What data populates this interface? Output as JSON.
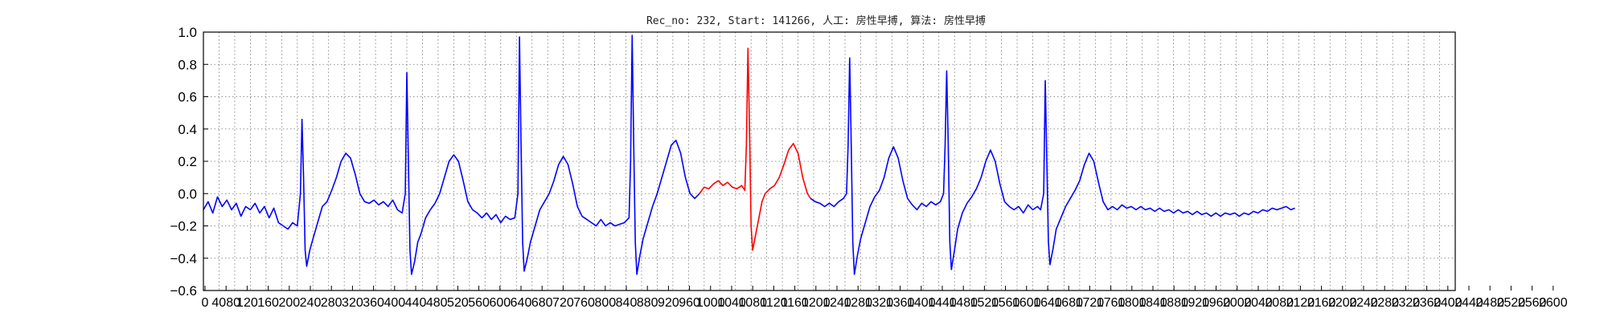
{
  "chart_data": {
    "type": "line",
    "title": "Rec_no: 232, Start: 141266, 人工: 房性早搏, 算法: 房性早搏",
    "xlabel": "",
    "ylabel": "",
    "xlim": [
      0,
      1600
    ],
    "ylim": [
      -0.6,
      1.0
    ],
    "yticks": [
      -0.6,
      -0.4,
      -0.2,
      0.0,
      0.2,
      0.4,
      0.6,
      0.8,
      1.0
    ],
    "ytick_labels": [
      "−0.6",
      "−0.4",
      "−0.2",
      "0.0",
      "0.2",
      "0.4",
      "0.6",
      "0.8",
      "1.0"
    ],
    "xtick_step": 20,
    "xtick_labels": [
      "0",
      "4080",
      "120",
      "160",
      "200",
      "240",
      "280",
      "320",
      "360",
      "400",
      "440",
      "480",
      "520",
      "560",
      "600",
      "640",
      "680",
      "720",
      "760",
      "800",
      "840",
      "880",
      "920",
      "960",
      "1000",
      "1040",
      "1080",
      "1120",
      "1160",
      "1200",
      "1240",
      "1280",
      "1320",
      "1360",
      "1400",
      "1440",
      "1480",
      "1520",
      "1560",
      "1600",
      "1640",
      "1680",
      "1720",
      "1760",
      "1800",
      "1840",
      "1880",
      "1920",
      "1960",
      "2000",
      "2040",
      "2080",
      "2120",
      "2160",
      "2200",
      "2240",
      "2280",
      "2320",
      "2360",
      "2400",
      "2440",
      "2480",
      "2520",
      "2560",
      "2600"
    ],
    "grid": true,
    "series": [
      {
        "color": "#0000ff",
        "segment": "before",
        "points": [
          [
            0,
            -0.1
          ],
          [
            6,
            -0.05
          ],
          [
            12,
            -0.12
          ],
          [
            18,
            -0.02
          ],
          [
            24,
            -0.08
          ],
          [
            30,
            -0.04
          ],
          [
            36,
            -0.1
          ],
          [
            42,
            -0.06
          ],
          [
            48,
            -0.14
          ],
          [
            54,
            -0.08
          ],
          [
            60,
            -0.1
          ],
          [
            66,
            -0.06
          ],
          [
            72,
            -0.12
          ],
          [
            78,
            -0.08
          ],
          [
            84,
            -0.15
          ],
          [
            90,
            -0.09
          ],
          [
            96,
            -0.18
          ],
          [
            102,
            -0.2
          ],
          [
            108,
            -0.22
          ],
          [
            114,
            -0.18
          ],
          [
            120,
            -0.2
          ],
          [
            124,
            0.0
          ],
          [
            126,
            0.46
          ],
          [
            128,
            0.1
          ],
          [
            130,
            -0.35
          ],
          [
            132,
            -0.45
          ],
          [
            136,
            -0.35
          ],
          [
            140,
            -0.28
          ],
          [
            146,
            -0.18
          ],
          [
            152,
            -0.08
          ],
          [
            158,
            -0.05
          ],
          [
            164,
            0.02
          ],
          [
            170,
            0.1
          ],
          [
            176,
            0.2
          ],
          [
            182,
            0.25
          ],
          [
            188,
            0.22
          ],
          [
            194,
            0.12
          ],
          [
            200,
            0.0
          ],
          [
            206,
            -0.05
          ],
          [
            212,
            -0.06
          ],
          [
            218,
            -0.04
          ],
          [
            224,
            -0.07
          ],
          [
            230,
            -0.05
          ],
          [
            236,
            -0.08
          ],
          [
            242,
            -0.04
          ],
          [
            248,
            -0.1
          ],
          [
            254,
            -0.12
          ],
          [
            258,
            0.0
          ],
          [
            260,
            0.75
          ],
          [
            262,
            0.2
          ],
          [
            264,
            -0.35
          ],
          [
            266,
            -0.5
          ],
          [
            270,
            -0.42
          ],
          [
            274,
            -0.3
          ],
          [
            278,
            -0.25
          ],
          [
            284,
            -0.15
          ],
          [
            290,
            -0.1
          ],
          [
            296,
            -0.06
          ],
          [
            302,
            0.0
          ],
          [
            308,
            0.1
          ],
          [
            314,
            0.2
          ],
          [
            320,
            0.24
          ],
          [
            326,
            0.2
          ],
          [
            332,
            0.08
          ],
          [
            338,
            -0.05
          ],
          [
            344,
            -0.1
          ],
          [
            350,
            -0.12
          ],
          [
            356,
            -0.15
          ],
          [
            362,
            -0.12
          ],
          [
            368,
            -0.16
          ],
          [
            374,
            -0.13
          ],
          [
            380,
            -0.18
          ],
          [
            386,
            -0.14
          ],
          [
            392,
            -0.16
          ],
          [
            398,
            -0.15
          ],
          [
            402,
            0.0
          ],
          [
            404,
            0.97
          ],
          [
            406,
            0.3
          ],
          [
            408,
            -0.3
          ],
          [
            410,
            -0.48
          ],
          [
            414,
            -0.4
          ],
          [
            418,
            -0.3
          ],
          [
            424,
            -0.2
          ],
          [
            430,
            -0.1
          ],
          [
            436,
            -0.05
          ],
          [
            442,
            0.0
          ],
          [
            448,
            0.08
          ],
          [
            454,
            0.18
          ],
          [
            460,
            0.23
          ],
          [
            466,
            0.18
          ],
          [
            472,
            0.06
          ],
          [
            478,
            -0.08
          ],
          [
            484,
            -0.14
          ],
          [
            490,
            -0.16
          ],
          [
            496,
            -0.18
          ],
          [
            502,
            -0.2
          ],
          [
            508,
            -0.16
          ],
          [
            514,
            -0.2
          ],
          [
            520,
            -0.18
          ],
          [
            526,
            -0.2
          ],
          [
            532,
            -0.19
          ],
          [
            538,
            -0.18
          ],
          [
            544,
            -0.15
          ],
          [
            546,
            0.2
          ],
          [
            548,
            0.98
          ],
          [
            550,
            0.3
          ],
          [
            552,
            -0.3
          ],
          [
            554,
            -0.5
          ],
          [
            558,
            -0.38
          ],
          [
            562,
            -0.28
          ],
          [
            568,
            -0.18
          ],
          [
            574,
            -0.08
          ],
          [
            580,
            0.0
          ],
          [
            586,
            0.1
          ],
          [
            592,
            0.2
          ],
          [
            598,
            0.3
          ],
          [
            604,
            0.33
          ],
          [
            610,
            0.25
          ],
          [
            616,
            0.1
          ],
          [
            622,
            0.0
          ],
          [
            628,
            -0.03
          ],
          [
            634,
            0.0
          ]
        ]
      },
      {
        "color": "#ff0000",
        "segment": "event",
        "points": [
          [
            634,
            0.0
          ],
          [
            640,
            0.04
          ],
          [
            646,
            0.03
          ],
          [
            652,
            0.06
          ],
          [
            658,
            0.08
          ],
          [
            664,
            0.05
          ],
          [
            670,
            0.07
          ],
          [
            676,
            0.04
          ],
          [
            682,
            0.03
          ],
          [
            688,
            0.05
          ],
          [
            692,
            0.02
          ],
          [
            694,
            0.3
          ],
          [
            696,
            0.9
          ],
          [
            698,
            0.4
          ],
          [
            700,
            -0.2
          ],
          [
            702,
            -0.35
          ],
          [
            706,
            -0.25
          ],
          [
            710,
            -0.15
          ],
          [
            714,
            -0.05
          ],
          [
            718,
            0.0
          ],
          [
            724,
            0.03
          ],
          [
            730,
            0.05
          ],
          [
            736,
            0.1
          ],
          [
            742,
            0.18
          ],
          [
            748,
            0.27
          ],
          [
            754,
            0.31
          ],
          [
            760,
            0.25
          ],
          [
            766,
            0.1
          ],
          [
            772,
            0.0
          ],
          [
            776,
            -0.03
          ]
        ]
      },
      {
        "color": "#0000ff",
        "segment": "after",
        "points": [
          [
            776,
            -0.03
          ],
          [
            782,
            -0.05
          ],
          [
            788,
            -0.06
          ],
          [
            794,
            -0.08
          ],
          [
            800,
            -0.06
          ],
          [
            806,
            -0.08
          ],
          [
            812,
            -0.05
          ],
          [
            818,
            -0.03
          ],
          [
            822,
            0.0
          ],
          [
            824,
            0.3
          ],
          [
            826,
            0.84
          ],
          [
            828,
            0.3
          ],
          [
            830,
            -0.3
          ],
          [
            832,
            -0.5
          ],
          [
            836,
            -0.38
          ],
          [
            840,
            -0.28
          ],
          [
            846,
            -0.18
          ],
          [
            852,
            -0.08
          ],
          [
            858,
            -0.02
          ],
          [
            864,
            0.02
          ],
          [
            870,
            0.1
          ],
          [
            876,
            0.22
          ],
          [
            882,
            0.29
          ],
          [
            888,
            0.22
          ],
          [
            894,
            0.08
          ],
          [
            900,
            -0.03
          ],
          [
            906,
            -0.07
          ],
          [
            912,
            -0.1
          ],
          [
            918,
            -0.06
          ],
          [
            924,
            -0.08
          ],
          [
            930,
            -0.05
          ],
          [
            936,
            -0.07
          ],
          [
            942,
            -0.05
          ],
          [
            946,
            0.0
          ],
          [
            948,
            0.3
          ],
          [
            950,
            0.76
          ],
          [
            952,
            0.3
          ],
          [
            954,
            -0.3
          ],
          [
            956,
            -0.47
          ],
          [
            960,
            -0.35
          ],
          [
            964,
            -0.22
          ],
          [
            970,
            -0.12
          ],
          [
            976,
            -0.06
          ],
          [
            982,
            -0.02
          ],
          [
            988,
            0.03
          ],
          [
            994,
            0.1
          ],
          [
            1000,
            0.2
          ],
          [
            1006,
            0.27
          ],
          [
            1012,
            0.2
          ],
          [
            1018,
            0.06
          ],
          [
            1024,
            -0.05
          ],
          [
            1030,
            -0.08
          ],
          [
            1036,
            -0.1
          ],
          [
            1042,
            -0.08
          ],
          [
            1048,
            -0.12
          ],
          [
            1054,
            -0.07
          ],
          [
            1060,
            -0.1
          ],
          [
            1066,
            -0.08
          ],
          [
            1070,
            -0.1
          ],
          [
            1074,
            0.0
          ],
          [
            1076,
            0.7
          ],
          [
            1078,
            0.2
          ],
          [
            1080,
            -0.3
          ],
          [
            1082,
            -0.44
          ],
          [
            1086,
            -0.34
          ],
          [
            1090,
            -0.22
          ],
          [
            1096,
            -0.15
          ],
          [
            1102,
            -0.08
          ],
          [
            1108,
            -0.03
          ],
          [
            1114,
            0.02
          ],
          [
            1120,
            0.08
          ],
          [
            1126,
            0.18
          ],
          [
            1132,
            0.25
          ],
          [
            1138,
            0.2
          ],
          [
            1144,
            0.07
          ],
          [
            1150,
            -0.05
          ],
          [
            1156,
            -0.1
          ],
          [
            1162,
            -0.08
          ],
          [
            1168,
            -0.1
          ],
          [
            1174,
            -0.07
          ],
          [
            1180,
            -0.09
          ],
          [
            1186,
            -0.08
          ],
          [
            1192,
            -0.1
          ],
          [
            1198,
            -0.08
          ],
          [
            1204,
            -0.1
          ],
          [
            1210,
            -0.09
          ],
          [
            1216,
            -0.11
          ],
          [
            1222,
            -0.09
          ],
          [
            1228,
            -0.11
          ],
          [
            1234,
            -0.1
          ],
          [
            1240,
            -0.12
          ],
          [
            1246,
            -0.1
          ],
          [
            1252,
            -0.12
          ],
          [
            1258,
            -0.11
          ],
          [
            1264,
            -0.13
          ],
          [
            1270,
            -0.11
          ],
          [
            1276,
            -0.13
          ],
          [
            1282,
            -0.12
          ],
          [
            1288,
            -0.14
          ],
          [
            1294,
            -0.12
          ],
          [
            1300,
            -0.14
          ],
          [
            1306,
            -0.12
          ],
          [
            1312,
            -0.13
          ],
          [
            1318,
            -0.12
          ],
          [
            1324,
            -0.14
          ],
          [
            1330,
            -0.12
          ],
          [
            1336,
            -0.13
          ],
          [
            1342,
            -0.11
          ],
          [
            1348,
            -0.12
          ],
          [
            1354,
            -0.1
          ],
          [
            1360,
            -0.11
          ],
          [
            1366,
            -0.09
          ],
          [
            1372,
            -0.1
          ],
          [
            1378,
            -0.09
          ],
          [
            1384,
            -0.08
          ],
          [
            1390,
            -0.1
          ],
          [
            1395,
            -0.09
          ]
        ]
      }
    ]
  }
}
